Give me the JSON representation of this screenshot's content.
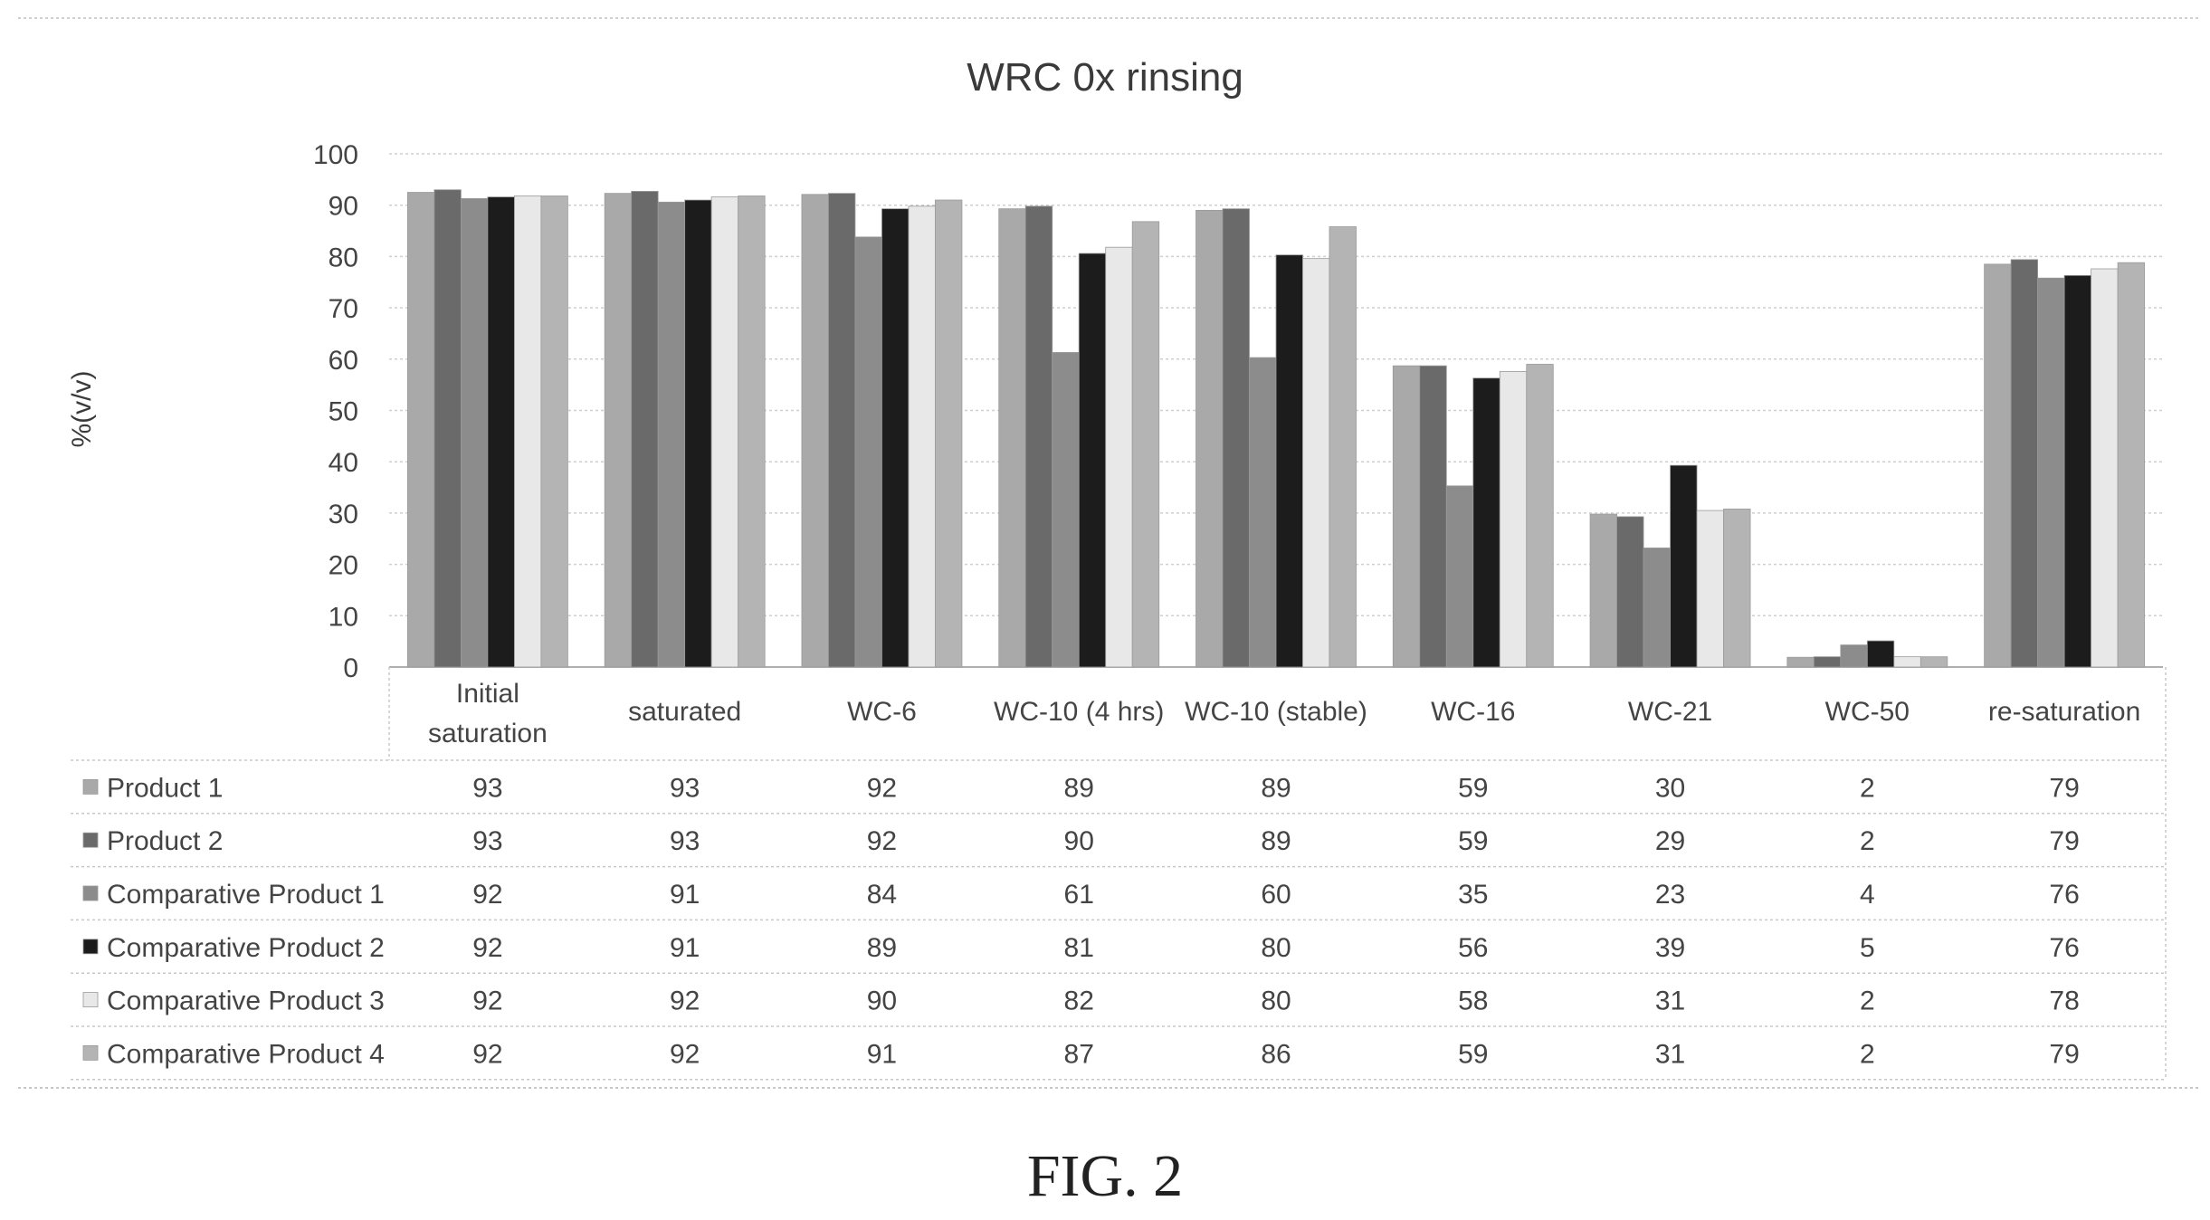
{
  "figure_label": "FIG. 2",
  "chart_data": {
    "type": "bar",
    "title": "WRC 0x rinsing",
    "xlabel": "",
    "ylabel": "%(v/v)",
    "ylim": [
      0,
      100
    ],
    "yticks": [
      0,
      10,
      20,
      30,
      40,
      50,
      60,
      70,
      80,
      90,
      100
    ],
    "grid": true,
    "legend": "data-table",
    "categories": [
      [
        "Initial",
        "saturation"
      ],
      [
        "saturated"
      ],
      [
        "WC-6"
      ],
      [
        "WC-10 (4 hrs)"
      ],
      [
        "WC-10 (stable)"
      ],
      [
        "WC-16"
      ],
      [
        "WC-21"
      ],
      [
        "WC-50"
      ],
      [
        "re-saturation"
      ]
    ],
    "series": [
      {
        "name": "Product 1",
        "color": "#a9a9a9",
        "values": [
          93,
          93,
          92,
          89,
          89,
          59,
          30,
          2,
          79
        ],
        "bars": [
          92.5,
          92.3,
          92.1,
          89.3,
          89.0,
          58.7,
          29.8,
          1.9,
          78.5
        ]
      },
      {
        "name": "Product 2",
        "color": "#6a6a6a",
        "values": [
          93,
          93,
          92,
          90,
          89,
          59,
          29,
          2,
          79
        ],
        "bars": [
          93.0,
          92.7,
          92.3,
          89.8,
          89.3,
          58.7,
          29.3,
          2.0,
          79.4
        ]
      },
      {
        "name": "Comparative Product 1",
        "color": "#8c8c8c",
        "values": [
          92,
          91,
          84,
          61,
          60,
          35,
          23,
          4,
          76
        ],
        "bars": [
          91.3,
          90.6,
          83.8,
          61.3,
          60.3,
          35.3,
          23.2,
          4.3,
          75.8
        ]
      },
      {
        "name": "Comparative Product 2",
        "color": "#1c1c1c",
        "values": [
          92,
          91,
          89,
          81,
          80,
          56,
          39,
          5,
          76
        ],
        "bars": [
          91.6,
          91.0,
          89.3,
          80.6,
          80.3,
          56.3,
          39.3,
          5.1,
          76.3
        ]
      },
      {
        "name": "Comparative Product 3",
        "color": "#e8e8e8",
        "values": [
          92,
          92,
          90,
          82,
          80,
          58,
          31,
          2,
          78
        ],
        "bars": [
          91.8,
          91.6,
          89.8,
          81.8,
          79.6,
          57.6,
          30.5,
          2.0,
          77.6
        ]
      },
      {
        "name": "Comparative Product 4",
        "color": "#b4b4b4",
        "values": [
          92,
          92,
          91,
          87,
          86,
          59,
          31,
          2,
          79
        ],
        "bars": [
          91.8,
          91.8,
          91.0,
          86.8,
          85.8,
          59.0,
          30.8,
          2.0,
          78.8
        ]
      }
    ]
  }
}
